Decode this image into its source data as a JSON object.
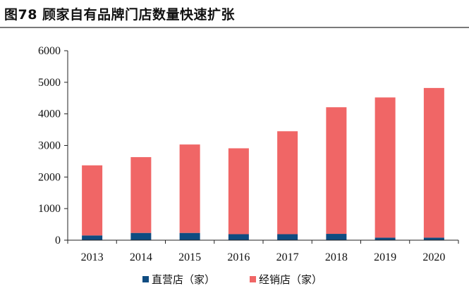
{
  "title": "图78 顾家自有品牌门店数量快速扩张",
  "chart_data": {
    "type": "bar",
    "stacked": true,
    "categories": [
      "2013",
      "2014",
      "2015",
      "2016",
      "2017",
      "2018",
      "2019",
      "2020"
    ],
    "series": [
      {
        "name": "直营店（家）",
        "color": "#0f4c81",
        "values": [
          150,
          230,
          230,
          190,
          190,
          200,
          80,
          80
        ]
      },
      {
        "name": "经销店（家）",
        "color": "#f06666",
        "values": [
          2220,
          2400,
          2800,
          2720,
          3260,
          4010,
          4440,
          4740
        ]
      }
    ],
    "ylim": [
      0,
      6000
    ],
    "yticks": [
      0,
      1000,
      2000,
      3000,
      4000,
      5000,
      6000
    ],
    "legend_position": "bottom",
    "grid": false
  }
}
